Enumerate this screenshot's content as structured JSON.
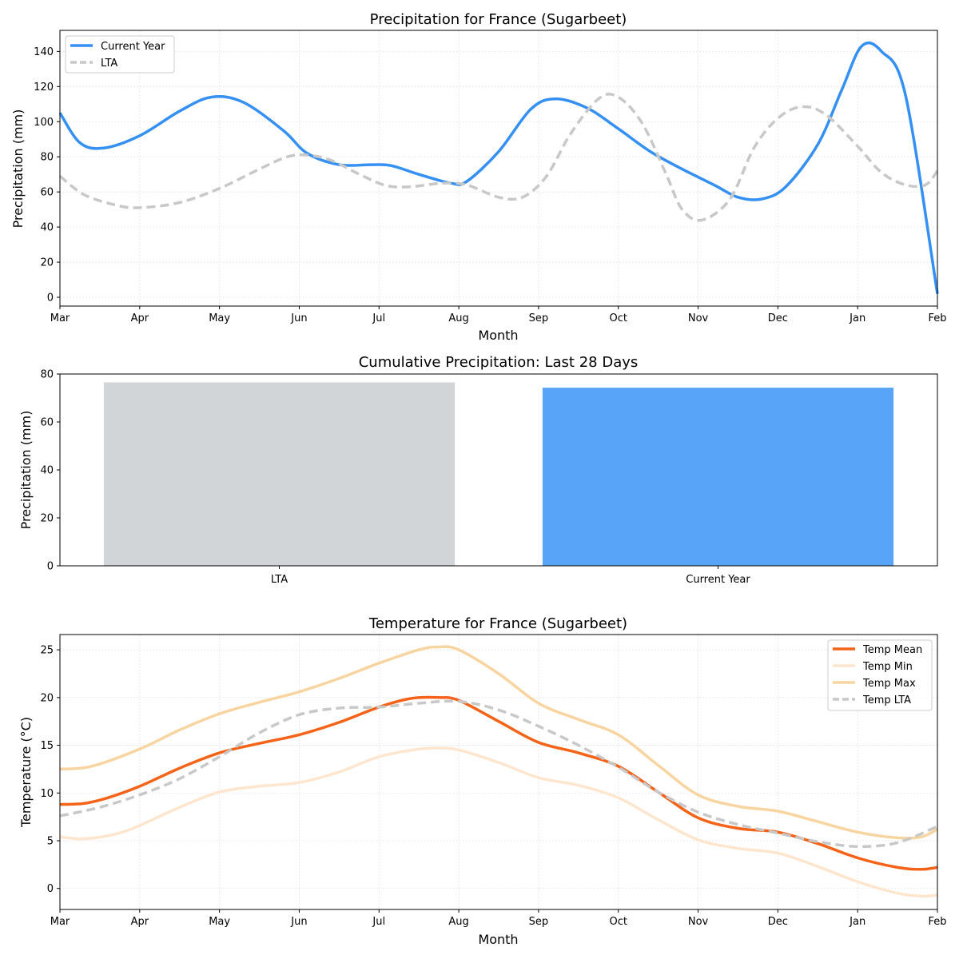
{
  "chart_data": [
    {
      "type": "line",
      "title": "Precipitation for France (Sugarbeet)",
      "xlabel": "Month",
      "ylabel": "Precipitation (mm)",
      "categories": [
        "Mar",
        "Apr",
        "May",
        "Jun",
        "Jul",
        "Aug",
        "Sep",
        "Oct",
        "Nov",
        "Dec",
        "Jan",
        "Feb"
      ],
      "xlim": [
        0,
        11
      ],
      "ylim": [
        -5,
        152
      ],
      "yticks": [
        0,
        20,
        40,
        60,
        80,
        100,
        120,
        140
      ],
      "grid": true,
      "legend_position": "top-left",
      "series": [
        {
          "name": "Current Year",
          "color": "#3590F3",
          "style": "solid",
          "points": [
            [
              0,
              105
            ],
            [
              0.25,
              88
            ],
            [
              0.55,
              85
            ],
            [
              1,
              92
            ],
            [
              1.5,
              106
            ],
            [
              1.9,
              114
            ],
            [
              2.3,
              111
            ],
            [
              2.8,
              95
            ],
            [
              3.1,
              82
            ],
            [
              3.5,
              75.5
            ],
            [
              3.9,
              75.5
            ],
            [
              4.15,
              75
            ],
            [
              4.5,
              70
            ],
            [
              4.9,
              65
            ],
            [
              5.1,
              66
            ],
            [
              5.5,
              83
            ],
            [
              5.9,
              107
            ],
            [
              6.2,
              113
            ],
            [
              6.6,
              108
            ],
            [
              7,
              96
            ],
            [
              7.4,
              83
            ],
            [
              7.8,
              73
            ],
            [
              8.2,
              64
            ],
            [
              8.5,
              57
            ],
            [
              8.8,
              56
            ],
            [
              9.1,
              63
            ],
            [
              9.5,
              87
            ],
            [
              9.8,
              118
            ],
            [
              10.05,
              143
            ],
            [
              10.3,
              140
            ],
            [
              10.6,
              115
            ],
            [
              11,
              2
            ]
          ]
        },
        {
          "name": "LTA",
          "color": "#C8C8C8",
          "style": "dashed",
          "points": [
            [
              0,
              69
            ],
            [
              0.3,
              58.5
            ],
            [
              0.7,
              52.5
            ],
            [
              1,
              51
            ],
            [
              1.5,
              54
            ],
            [
              2,
              62
            ],
            [
              2.5,
              73
            ],
            [
              2.85,
              80
            ],
            [
              3.1,
              81
            ],
            [
              3.4,
              78
            ],
            [
              3.8,
              69
            ],
            [
              4.1,
              63.5
            ],
            [
              4.4,
              63
            ],
            [
              4.8,
              65
            ],
            [
              5.1,
              64
            ],
            [
              5.5,
              57
            ],
            [
              5.8,
              57
            ],
            [
              6.1,
              69
            ],
            [
              6.4,
              93
            ],
            [
              6.75,
              113
            ],
            [
              7,
              114
            ],
            [
              7.3,
              99
            ],
            [
              7.6,
              70
            ],
            [
              7.8,
              50
            ],
            [
              8.05,
              44
            ],
            [
              8.4,
              56
            ],
            [
              8.7,
              85
            ],
            [
              9,
              102
            ],
            [
              9.3,
              108.5
            ],
            [
              9.6,
              104
            ],
            [
              10,
              86
            ],
            [
              10.3,
              71
            ],
            [
              10.6,
              64
            ],
            [
              10.85,
              64
            ],
            [
              11,
              72
            ]
          ]
        }
      ]
    },
    {
      "type": "bar",
      "title": "Cumulative Precipitation: Last 28 Days",
      "xlabel": "",
      "ylabel": "Precipitation (mm)",
      "categories": [
        "LTA",
        "Current Year"
      ],
      "values": [
        76.5,
        74.3
      ],
      "colors": [
        "#D1D5D8",
        "#58A4F9"
      ],
      "ylim": [
        0,
        80
      ],
      "yticks": [
        0,
        20,
        40,
        60,
        80
      ],
      "grid": false
    },
    {
      "type": "line",
      "title": "Temperature for France (Sugarbeet)",
      "xlabel": "Month",
      "ylabel": "Temperature (°C)",
      "categories": [
        "Mar",
        "Apr",
        "May",
        "Jun",
        "Jul",
        "Aug",
        "Sep",
        "Oct",
        "Nov",
        "Dec",
        "Jan",
        "Feb"
      ],
      "xlim": [
        0,
        11
      ],
      "ylim": [
        -2.2,
        26.6
      ],
      "yticks": [
        0,
        5,
        10,
        15,
        20,
        25
      ],
      "grid": true,
      "legend_position": "top-right",
      "series": [
        {
          "name": "Temp Mean",
          "color": "#F46318",
          "style": "solid",
          "points": [
            [
              0,
              8.8
            ],
            [
              0.3,
              8.9
            ],
            [
              0.6,
              9.5
            ],
            [
              1,
              10.7
            ],
            [
              1.5,
              12.6
            ],
            [
              2,
              14.2
            ],
            [
              2.5,
              15.2
            ],
            [
              3,
              16.1
            ],
            [
              3.5,
              17.4
            ],
            [
              4,
              19
            ],
            [
              4.4,
              19.9
            ],
            [
              4.75,
              20
            ],
            [
              5,
              19.7
            ],
            [
              5.5,
              17.5
            ],
            [
              6,
              15.3
            ],
            [
              6.5,
              14.2
            ],
            [
              7,
              12.8
            ],
            [
              7.5,
              10.1
            ],
            [
              8,
              7.4
            ],
            [
              8.5,
              6.3
            ],
            [
              9,
              5.9
            ],
            [
              9.5,
              4.7
            ],
            [
              10,
              3.2
            ],
            [
              10.5,
              2.2
            ],
            [
              10.8,
              2
            ],
            [
              11,
              2.2
            ]
          ]
        },
        {
          "name": "Temp Min",
          "color": "#FEE6CE",
          "style": "solid",
          "points": [
            [
              0,
              5.4
            ],
            [
              0.3,
              5.2
            ],
            [
              0.7,
              5.7
            ],
            [
              1,
              6.6
            ],
            [
              1.5,
              8.5
            ],
            [
              2,
              10.1
            ],
            [
              2.5,
              10.7
            ],
            [
              3,
              11.1
            ],
            [
              3.5,
              12.2
            ],
            [
              4,
              13.8
            ],
            [
              4.5,
              14.6
            ],
            [
              4.75,
              14.7
            ],
            [
              5,
              14.5
            ],
            [
              5.5,
              13.2
            ],
            [
              6,
              11.6
            ],
            [
              6.5,
              10.8
            ],
            [
              7,
              9.5
            ],
            [
              7.5,
              7.2
            ],
            [
              8,
              5.1
            ],
            [
              8.5,
              4.2
            ],
            [
              9,
              3.7
            ],
            [
              9.5,
              2.3
            ],
            [
              10,
              0.7
            ],
            [
              10.5,
              -0.5
            ],
            [
              10.8,
              -0.8
            ],
            [
              11,
              -0.7
            ]
          ]
        },
        {
          "name": "Temp Max",
          "color": "#F8D5A0",
          "style": "solid",
          "points": [
            [
              0,
              12.5
            ],
            [
              0.4,
              12.8
            ],
            [
              1,
              14.6
            ],
            [
              1.5,
              16.6
            ],
            [
              2,
              18.3
            ],
            [
              2.5,
              19.5
            ],
            [
              3,
              20.6
            ],
            [
              3.5,
              22
            ],
            [
              4,
              23.6
            ],
            [
              4.5,
              25
            ],
            [
              4.75,
              25.3
            ],
            [
              5,
              25
            ],
            [
              5.5,
              22.5
            ],
            [
              6,
              19.4
            ],
            [
              6.5,
              17.7
            ],
            [
              7,
              16.1
            ],
            [
              7.5,
              12.9
            ],
            [
              8,
              9.8
            ],
            [
              8.5,
              8.6
            ],
            [
              9,
              8.1
            ],
            [
              9.5,
              7
            ],
            [
              10,
              5.9
            ],
            [
              10.5,
              5.3
            ],
            [
              10.8,
              5.4
            ],
            [
              11,
              6.2
            ]
          ]
        },
        {
          "name": "Temp LTA",
          "color": "#C8C8C8",
          "style": "dashed",
          "points": [
            [
              0,
              7.6
            ],
            [
              0.5,
              8.5
            ],
            [
              1,
              9.8
            ],
            [
              1.5,
              11.5
            ],
            [
              2,
              13.8
            ],
            [
              2.5,
              16.3
            ],
            [
              3,
              18.2
            ],
            [
              3.5,
              18.9
            ],
            [
              4,
              19
            ],
            [
              4.5,
              19.4
            ],
            [
              5,
              19.6
            ],
            [
              5.5,
              18.7
            ],
            [
              6,
              17
            ],
            [
              6.5,
              15
            ],
            [
              7,
              12.7
            ],
            [
              7.5,
              10.1
            ],
            [
              8,
              8
            ],
            [
              8.5,
              6.7
            ],
            [
              9,
              5.8
            ],
            [
              9.5,
              4.9
            ],
            [
              10,
              4.4
            ],
            [
              10.5,
              4.8
            ],
            [
              11,
              6.5
            ]
          ]
        }
      ]
    }
  ]
}
